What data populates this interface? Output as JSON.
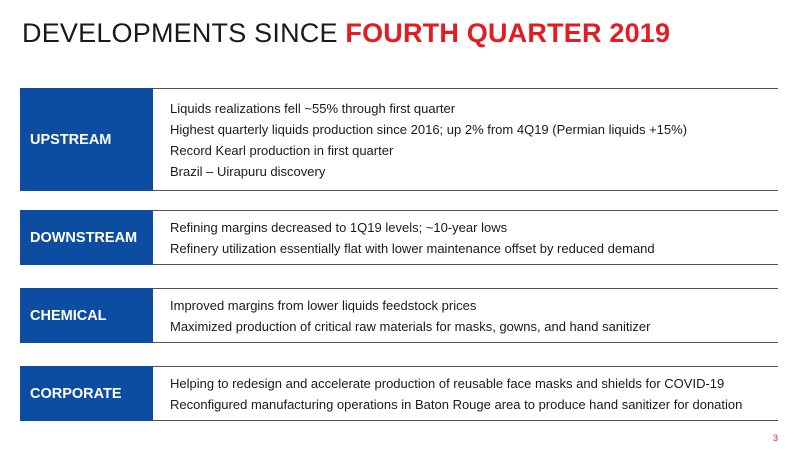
{
  "title": {
    "prefix": "DEVELOPMENTS SINCE ",
    "accent": "FOURTH QUARTER 2019"
  },
  "sections": [
    {
      "label": "UPSTREAM",
      "items": [
        "Liquids realizations fell ~55% through first quarter",
        "Highest quarterly liquids production since 2016; up 2% from 4Q19 (Permian liquids +15%)",
        "Record Kearl production in first quarter",
        "Brazil – Uirapuru discovery"
      ]
    },
    {
      "label": "DOWNSTREAM",
      "items": [
        "Refining margins decreased to 1Q19 levels; ~10-year lows",
        "Refinery utilization essentially flat with lower maintenance offset by reduced demand"
      ]
    },
    {
      "label": "CHEMICAL",
      "items": [
        "Improved margins from lower liquids feedstock prices",
        "Maximized production of critical raw materials for masks, gowns, and hand sanitizer"
      ]
    },
    {
      "label": "CORPORATE",
      "items": [
        "Helping to redesign and accelerate production of reusable face masks and shields for COVID-19",
        "Reconfigured manufacturing operations in Baton Rouge area to produce hand sanitizer for donation"
      ]
    }
  ],
  "page_number": "3",
  "colors": {
    "accent": "#e31b23",
    "label_bg": "#0c4da2"
  }
}
